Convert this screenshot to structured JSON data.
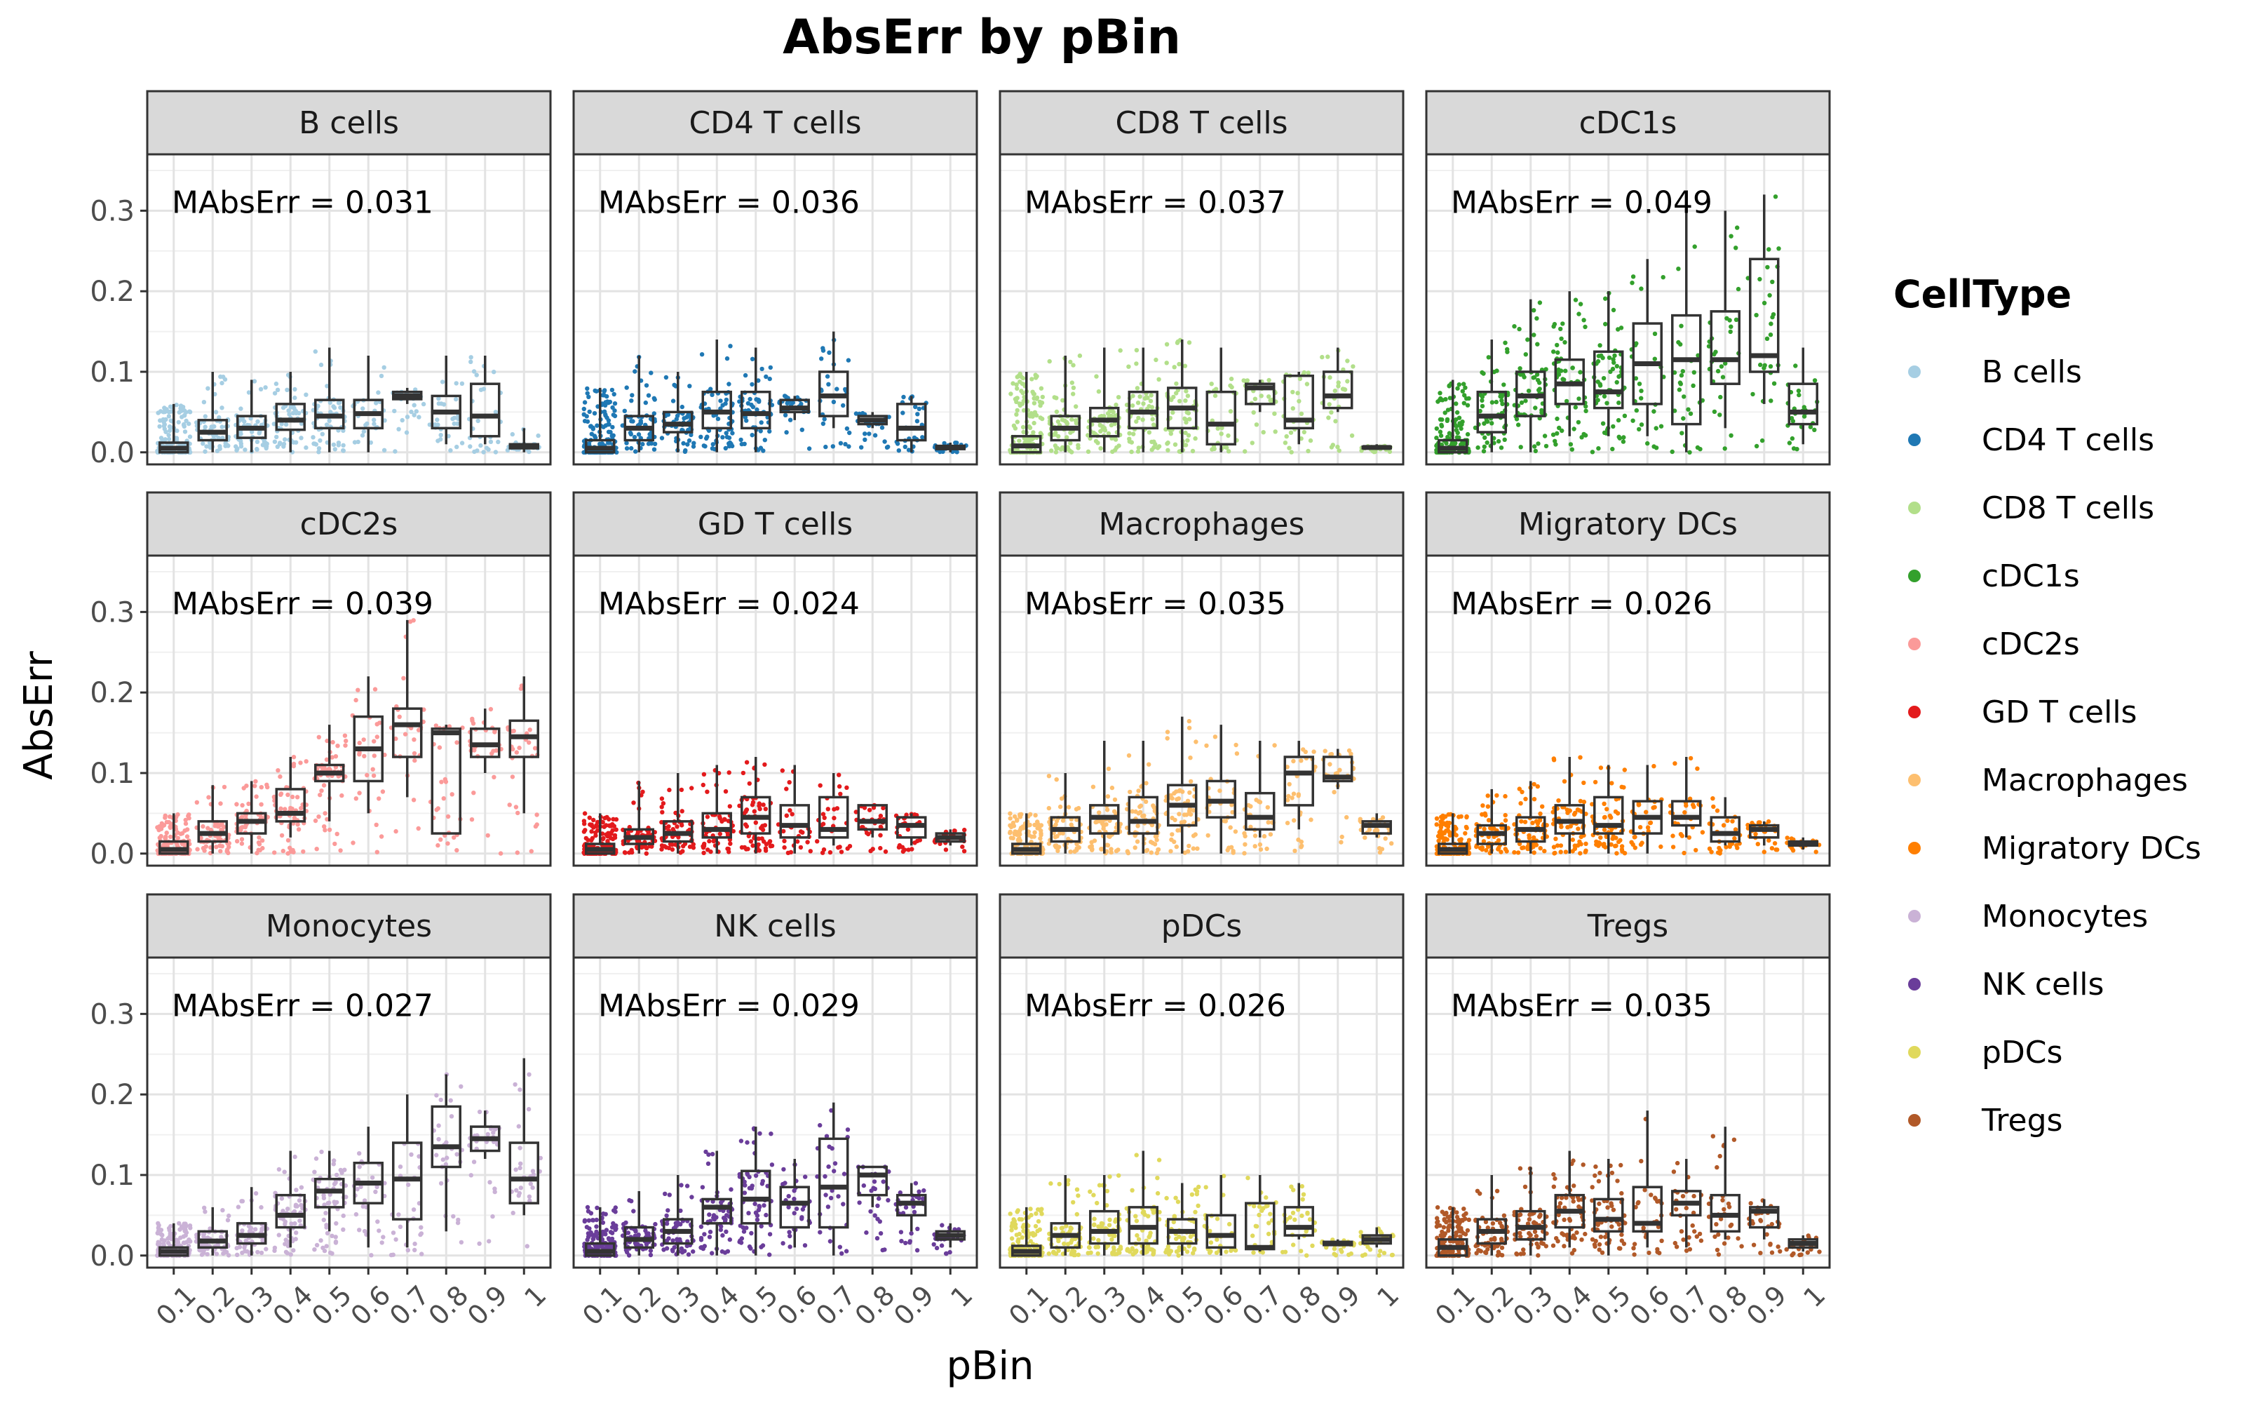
{
  "chart_data": {
    "type": "boxplot",
    "title": "AbsErr by pBin",
    "xlabel": "pBin",
    "ylabel": "AbsErr",
    "ylim": [
      -0.015,
      0.37
    ],
    "yticks": [
      "0.0",
      "0.1",
      "0.2",
      "0.3"
    ],
    "categories": [
      "0.1",
      "0.2",
      "0.3",
      "0.4",
      "0.5",
      "0.6",
      "0.7",
      "0.8",
      "0.9",
      "1"
    ],
    "grid": true,
    "legend": {
      "title": "CellType",
      "position": "right",
      "items": [
        "B cells",
        "CD4 T cells",
        "CD8 T cells",
        "cDC1s",
        "cDC2s",
        "GD T cells",
        "Macrophages",
        "Migratory DCs",
        "Monocytes",
        "NK cells",
        "pDCs",
        "Tregs"
      ]
    },
    "annotation_prefix": "MAbsErr = ",
    "facets": [
      {
        "name": "B cells",
        "color": "#a6cee3",
        "mae": "0.031",
        "boxes": [
          [
            0,
            0,
            0.005,
            0.012,
            0.06
          ],
          [
            0,
            0.015,
            0.025,
            0.04,
            0.1
          ],
          [
            0,
            0.018,
            0.03,
            0.045,
            0.09
          ],
          [
            0,
            0.028,
            0.04,
            0.06,
            0.1
          ],
          [
            0,
            0.03,
            0.045,
            0.065,
            0.13
          ],
          [
            0,
            0.03,
            0.048,
            0.065,
            0.12
          ],
          [
            0.06,
            0.066,
            0.07,
            0.075,
            0.08
          ],
          [
            0.01,
            0.03,
            0.05,
            0.07,
            0.12
          ],
          [
            0.01,
            0.02,
            0.045,
            0.085,
            0.12
          ],
          [
            0,
            0.005,
            0.008,
            0.01,
            0.03
          ]
        ]
      },
      {
        "name": "CD4 T cells",
        "color": "#1f78b4",
        "mae": "0.036",
        "boxes": [
          [
            0,
            0,
            0.005,
            0.015,
            0.08
          ],
          [
            0,
            0.015,
            0.03,
            0.045,
            0.12
          ],
          [
            0,
            0.025,
            0.035,
            0.05,
            0.1
          ],
          [
            0,
            0.03,
            0.05,
            0.075,
            0.14
          ],
          [
            0,
            0.03,
            0.048,
            0.075,
            0.13
          ],
          [
            0.04,
            0.05,
            0.055,
            0.065,
            0.07
          ],
          [
            0.03,
            0.045,
            0.07,
            0.1,
            0.15
          ],
          [
            0.03,
            0.035,
            0.04,
            0.045,
            0.05
          ],
          [
            0,
            0.015,
            0.03,
            0.06,
            0.07
          ],
          [
            0,
            0.004,
            0.006,
            0.008,
            0.012
          ]
        ]
      },
      {
        "name": "CD8 T cells",
        "color": "#b2df8a",
        "mae": "0.037",
        "boxes": [
          [
            0,
            0,
            0.008,
            0.02,
            0.1
          ],
          [
            0,
            0.015,
            0.03,
            0.045,
            0.12
          ],
          [
            0,
            0.02,
            0.04,
            0.055,
            0.13
          ],
          [
            0,
            0.03,
            0.05,
            0.075,
            0.13
          ],
          [
            0,
            0.03,
            0.055,
            0.08,
            0.14
          ],
          [
            0,
            0.01,
            0.035,
            0.075,
            0.13
          ],
          [
            0.05,
            0.06,
            0.08,
            0.085,
            0.09
          ],
          [
            0.01,
            0.03,
            0.04,
            0.095,
            0.1
          ],
          [
            0.05,
            0.055,
            0.07,
            0.1,
            0.13
          ],
          [
            0.003,
            0.005,
            0.006,
            0.007,
            0.01
          ]
        ]
      },
      {
        "name": "cDC1s",
        "color": "#33a02c",
        "mae": "0.049",
        "boxes": [
          [
            0,
            0,
            0.005,
            0.015,
            0.09
          ],
          [
            0,
            0.025,
            0.045,
            0.075,
            0.14
          ],
          [
            0,
            0.045,
            0.07,
            0.1,
            0.19
          ],
          [
            0.02,
            0.06,
            0.085,
            0.115,
            0.2
          ],
          [
            0.02,
            0.055,
            0.075,
            0.125,
            0.2
          ],
          [
            0.02,
            0.06,
            0.11,
            0.16,
            0.24
          ],
          [
            0,
            0.035,
            0.115,
            0.17,
            0.3
          ],
          [
            0.03,
            0.085,
            0.115,
            0.175,
            0.3
          ],
          [
            0.06,
            0.1,
            0.12,
            0.24,
            0.32
          ],
          [
            0.01,
            0.035,
            0.05,
            0.085,
            0.13
          ]
        ]
      },
      {
        "name": "cDC2s",
        "color": "#fb9a99",
        "mae": "0.039",
        "boxes": [
          [
            0,
            0,
            0.005,
            0.015,
            0.05
          ],
          [
            0,
            0.015,
            0.025,
            0.04,
            0.085
          ],
          [
            0,
            0.025,
            0.04,
            0.05,
            0.09
          ],
          [
            0.02,
            0.04,
            0.05,
            0.08,
            0.12
          ],
          [
            0.04,
            0.09,
            0.1,
            0.11,
            0.16
          ],
          [
            0.05,
            0.09,
            0.13,
            0.17,
            0.22
          ],
          [
            0.07,
            0.12,
            0.16,
            0.18,
            0.29
          ],
          [
            0.025,
            0.025,
            0.15,
            0.155,
            0.16
          ],
          [
            0.1,
            0.12,
            0.135,
            0.155,
            0.18
          ],
          [
            0.05,
            0.12,
            0.145,
            0.165,
            0.22
          ]
        ]
      },
      {
        "name": "GD T cells",
        "color": "#e31a1c",
        "mae": "0.024",
        "boxes": [
          [
            0,
            0,
            0.005,
            0.012,
            0.05
          ],
          [
            0,
            0.012,
            0.02,
            0.03,
            0.09
          ],
          [
            0,
            0.015,
            0.025,
            0.04,
            0.1
          ],
          [
            0,
            0.02,
            0.03,
            0.05,
            0.11
          ],
          [
            0,
            0.025,
            0.045,
            0.07,
            0.12
          ],
          [
            0,
            0.02,
            0.035,
            0.06,
            0.11
          ],
          [
            0.01,
            0.02,
            0.03,
            0.07,
            0.1
          ],
          [
            0.02,
            0.03,
            0.04,
            0.06,
            0.06
          ],
          [
            0.01,
            0.02,
            0.035,
            0.045,
            0.05
          ],
          [
            0.01,
            0.015,
            0.02,
            0.025,
            0.03
          ]
        ]
      },
      {
        "name": "Macrophages",
        "color": "#fdbf6f",
        "mae": "0.035",
        "boxes": [
          [
            0,
            0,
            0.005,
            0.012,
            0.05
          ],
          [
            0,
            0.015,
            0.03,
            0.045,
            0.1
          ],
          [
            0,
            0.025,
            0.045,
            0.06,
            0.14
          ],
          [
            0,
            0.025,
            0.04,
            0.07,
            0.14
          ],
          [
            0,
            0.035,
            0.06,
            0.085,
            0.17
          ],
          [
            0,
            0.045,
            0.065,
            0.09,
            0.16
          ],
          [
            0.02,
            0.03,
            0.045,
            0.075,
            0.14
          ],
          [
            0.03,
            0.06,
            0.1,
            0.12,
            0.14
          ],
          [
            0.08,
            0.09,
            0.095,
            0.12,
            0.13
          ],
          [
            0.02,
            0.025,
            0.035,
            0.04,
            0.05
          ]
        ]
      },
      {
        "name": "Migratory DCs",
        "color": "#ff7f00",
        "mae": "0.026",
        "boxes": [
          [
            0,
            0,
            0.005,
            0.012,
            0.05
          ],
          [
            0,
            0.012,
            0.025,
            0.035,
            0.08
          ],
          [
            0,
            0.015,
            0.03,
            0.045,
            0.09
          ],
          [
            0,
            0.025,
            0.04,
            0.06,
            0.12
          ],
          [
            0,
            0.025,
            0.035,
            0.07,
            0.11
          ],
          [
            0,
            0.025,
            0.045,
            0.065,
            0.11
          ],
          [
            0.02,
            0.035,
            0.045,
            0.065,
            0.12
          ],
          [
            0.01,
            0.015,
            0.025,
            0.045,
            0.07
          ],
          [
            0.01,
            0.02,
            0.03,
            0.035,
            0.04
          ],
          [
            0.005,
            0.01,
            0.012,
            0.015,
            0.02
          ]
        ]
      },
      {
        "name": "Monocytes",
        "color": "#cab2d6",
        "mae": "0.027",
        "boxes": [
          [
            0,
            0,
            0.005,
            0.01,
            0.04
          ],
          [
            0,
            0.01,
            0.018,
            0.03,
            0.06
          ],
          [
            0,
            0.015,
            0.025,
            0.04,
            0.085
          ],
          [
            0.01,
            0.035,
            0.05,
            0.075,
            0.13
          ],
          [
            0.03,
            0.06,
            0.08,
            0.095,
            0.13
          ],
          [
            0.01,
            0.065,
            0.09,
            0.115,
            0.16
          ],
          [
            0.01,
            0.045,
            0.095,
            0.14,
            0.2
          ],
          [
            0.03,
            0.11,
            0.135,
            0.185,
            0.225
          ],
          [
            0.12,
            0.13,
            0.145,
            0.16,
            0.18
          ],
          [
            0.05,
            0.065,
            0.095,
            0.14,
            0.245
          ]
        ]
      },
      {
        "name": "NK cells",
        "color": "#6a3d9a",
        "mae": "0.029",
        "boxes": [
          [
            0,
            0,
            0.005,
            0.015,
            0.06
          ],
          [
            0,
            0.01,
            0.02,
            0.035,
            0.08
          ],
          [
            0,
            0.015,
            0.03,
            0.045,
            0.1
          ],
          [
            0,
            0.04,
            0.06,
            0.07,
            0.13
          ],
          [
            0,
            0.04,
            0.07,
            0.105,
            0.16
          ],
          [
            0.01,
            0.035,
            0.065,
            0.085,
            0.12
          ],
          [
            0,
            0.035,
            0.085,
            0.145,
            0.19
          ],
          [
            0.06,
            0.075,
            0.1,
            0.11,
            0.11
          ],
          [
            0.03,
            0.05,
            0.065,
            0.075,
            0.09
          ],
          [
            0.01,
            0.02,
            0.025,
            0.03,
            0.04
          ]
        ]
      },
      {
        "name": "pDCs",
        "color": "#e0d95c",
        "mae": "0.026",
        "boxes": [
          [
            0,
            0,
            0.005,
            0.012,
            0.06
          ],
          [
            0,
            0.01,
            0.025,
            0.04,
            0.1
          ],
          [
            0,
            0.015,
            0.03,
            0.055,
            0.1
          ],
          [
            0,
            0.015,
            0.035,
            0.06,
            0.13
          ],
          [
            0,
            0.015,
            0.03,
            0.045,
            0.09
          ],
          [
            0,
            0.01,
            0.025,
            0.05,
            0.1
          ],
          [
            0.005,
            0.008,
            0.01,
            0.065,
            0.1
          ],
          [
            0.02,
            0.025,
            0.035,
            0.06,
            0.09
          ],
          [
            0.012,
            0.013,
            0.015,
            0.017,
            0.02
          ],
          [
            0.01,
            0.015,
            0.02,
            0.025,
            0.035
          ]
        ]
      },
      {
        "name": "Tregs",
        "color": "#b15928",
        "mae": "0.035",
        "boxes": [
          [
            0,
            0,
            0.01,
            0.02,
            0.06
          ],
          [
            0,
            0.015,
            0.03,
            0.045,
            0.1
          ],
          [
            0,
            0.02,
            0.035,
            0.055,
            0.11
          ],
          [
            0.01,
            0.035,
            0.055,
            0.075,
            0.13
          ],
          [
            0,
            0.03,
            0.045,
            0.07,
            0.12
          ],
          [
            0.01,
            0.03,
            0.04,
            0.085,
            0.18
          ],
          [
            0.01,
            0.05,
            0.065,
            0.08,
            0.12
          ],
          [
            0.02,
            0.03,
            0.05,
            0.075,
            0.16
          ],
          [
            0.02,
            0.035,
            0.055,
            0.06,
            0.07
          ],
          [
            0.005,
            0.01,
            0.015,
            0.02,
            0.025
          ]
        ]
      }
    ]
  }
}
